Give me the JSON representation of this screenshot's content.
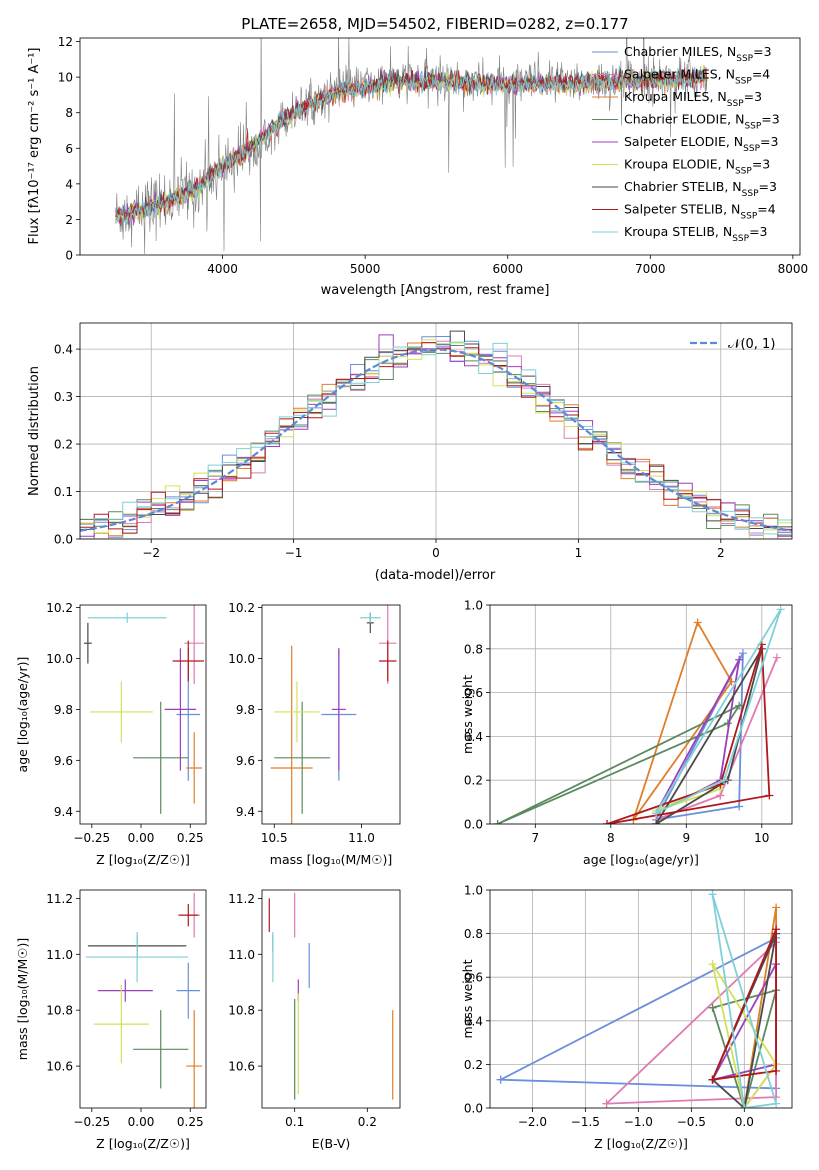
{
  "figure": {
    "title": "PLATE=2658, MJD=54502, FIBERID=0282, z=0.177"
  },
  "colors": {
    "models": [
      "#6a8fdc",
      "#e07ab2",
      "#e07e2a",
      "#5a8a5e",
      "#9b3fbf",
      "#d4e05a",
      "#4a4a4a",
      "#b0181c",
      "#7fd0d8"
    ],
    "data": "#808080",
    "normal": "#5b8ad6"
  },
  "legend_models": [
    "Chabrier MILES, N_SSP=3",
    "Salpeter MILES, N_SSP=4",
    "Kroupa MILES, N_SSP=3",
    "Chabrier ELODIE, N_SSP=3",
    "Salpeter ELODIE, N_SSP=3",
    "Kroupa ELODIE, N_SSP=3",
    "Chabrier STELIB, N_SSP=3",
    "Salpeter STELIB, N_SSP=4",
    "Kroupa STELIB, N_SSP=3"
  ],
  "chart_data": [
    {
      "id": "spectrum",
      "type": "line",
      "xlabel": "wavelength [Angstrom, rest frame]",
      "ylabel": "Flux [f_λ 10^-17 erg cm^-2 s^-1 A^-1]",
      "xlim": [
        3000,
        8050
      ],
      "ylim": [
        0,
        12.2
      ],
      "xticks": [
        4000,
        5000,
        6000,
        7000,
        8000
      ],
      "yticks": [
        0,
        2,
        4,
        6,
        8,
        10,
        12
      ],
      "grid": false,
      "legend_position": "right",
      "continuum": {
        "x": [
          3250,
          3450,
          3600,
          3800,
          4000,
          4200,
          4400,
          4600,
          4800,
          5000,
          5200,
          5400,
          5600,
          5800,
          6000,
          6200,
          6400,
          6600,
          6800,
          7000,
          7200,
          7400
        ],
        "y": [
          2.2,
          2.6,
          3.0,
          3.7,
          5.0,
          6.1,
          7.5,
          8.5,
          9.2,
          9.5,
          9.8,
          9.8,
          9.8,
          9.7,
          9.6,
          9.7,
          9.7,
          9.8,
          9.8,
          9.9,
          9.9,
          10.0
        ]
      }
    },
    {
      "id": "residuals",
      "type": "histogram",
      "xlabel": "(data-model)/error",
      "ylabel": "Normed distribution",
      "xlim": [
        -2.5,
        2.5
      ],
      "ylim": [
        0,
        0.455
      ],
      "xticks": [
        -2,
        -1,
        0,
        1,
        2
      ],
      "yticks": [
        0.0,
        0.1,
        0.2,
        0.3,
        0.4
      ],
      "bins": 50,
      "grid": true,
      "legend": "N(0,1)",
      "legend_position": "top-right"
    },
    {
      "id": "age-vs-Z",
      "type": "scatter",
      "xlabel": "Z [log10(Z/Z☉)]",
      "ylabel": "age [log10(age/yr)]",
      "xlim": [
        -0.31,
        0.33
      ],
      "ylim": [
        9.35,
        10.21
      ],
      "xticks": [
        -0.25,
        0.0,
        0.25
      ],
      "yticks": [
        9.4,
        9.6,
        9.8,
        10.0,
        10.2
      ],
      "points": [
        {
          "x": 0.24,
          "y": 9.78,
          "ex": 0.06,
          "ey": 0.26
        },
        {
          "x": 0.27,
          "y": 10.06,
          "ex": 0.05,
          "ey": 0.16
        },
        {
          "x": 0.27,
          "y": 9.57,
          "ex": 0.04,
          "ey": 0.14
        },
        {
          "x": 0.1,
          "y": 9.61,
          "ex": 0.14,
          "ey": 0.22
        },
        {
          "x": 0.2,
          "y": 9.8,
          "ex": 0.08,
          "ey": 0.24
        },
        {
          "x": -0.1,
          "y": 9.79,
          "ex": 0.16,
          "ey": 0.12
        },
        {
          "x": -0.27,
          "y": 10.06,
          "ex": 0.02,
          "ey": 0.08
        },
        {
          "x": 0.24,
          "y": 9.99,
          "ex": 0.08,
          "ey": 0.08
        },
        {
          "x": -0.07,
          "y": 10.16,
          "ex": 0.2,
          "ey": 0.02
        }
      ]
    },
    {
      "id": "age-vs-mass",
      "type": "scatter",
      "xlabel": "mass [log10(M/M☉)]",
      "ylabel": "",
      "xlim": [
        10.43,
        11.22
      ],
      "ylim": [
        9.35,
        10.21
      ],
      "xticks": [
        10.5,
        11.0
      ],
      "yticks": [
        9.4,
        9.6,
        9.8,
        10.0,
        10.2
      ],
      "points": [
        {
          "x": 10.87,
          "y": 9.78,
          "ex": 0.1,
          "ey": 0.26
        },
        {
          "x": 11.15,
          "y": 10.06,
          "ex": 0.05,
          "ey": 0.16
        },
        {
          "x": 10.6,
          "y": 9.57,
          "ex": 0.12,
          "ey": 0.48
        },
        {
          "x": 10.66,
          "y": 9.61,
          "ex": 0.16,
          "ey": 0.22
        },
        {
          "x": 10.87,
          "y": 9.8,
          "ex": 0.04,
          "ey": 0.24
        },
        {
          "x": 10.63,
          "y": 9.79,
          "ex": 0.13,
          "ey": 0.12
        },
        {
          "x": 11.05,
          "y": 10.14,
          "ex": 0.02,
          "ey": 0.04
        },
        {
          "x": 11.15,
          "y": 9.99,
          "ex": 0.05,
          "ey": 0.08
        },
        {
          "x": 11.05,
          "y": 10.16,
          "ex": 0.06,
          "ey": 0.02
        }
      ]
    },
    {
      "id": "massweight-vs-age",
      "type": "line",
      "xlabel": "age [log10(age/yr)]",
      "ylabel": "mass weight",
      "xlim": [
        6.4,
        10.4
      ],
      "ylim": [
        0.0,
        1.0
      ],
      "xticks": [
        7,
        8,
        9,
        10
      ],
      "yticks": [
        0.0,
        0.2,
        0.4,
        0.6,
        0.8,
        1.0
      ],
      "grid": true,
      "series": [
        {
          "x": [
            8.6,
            9.75,
            9.7,
            8.6
          ],
          "y": [
            0.02,
            0.78,
            0.08,
            0.02
          ]
        },
        {
          "x": [
            8.6,
            9.45,
            10.2,
            9.45,
            8.6
          ],
          "y": [
            0.02,
            0.13,
            0.76,
            0.13,
            0.02
          ]
        },
        {
          "x": [
            8.3,
            9.15,
            9.6,
            8.3
          ],
          "y": [
            0.02,
            0.92,
            0.65,
            0.02
          ]
        },
        {
          "x": [
            6.5,
            9.55,
            9.7,
            6.5
          ],
          "y": [
            0.0,
            0.46,
            0.54,
            0.0
          ]
        },
        {
          "x": [
            8.6,
            9.45,
            9.7,
            8.6
          ],
          "y": [
            0.05,
            0.2,
            0.75,
            0.05
          ]
        },
        {
          "x": [
            8.6,
            9.45,
            9.5,
            8.6
          ],
          "y": [
            0.06,
            0.16,
            0.2,
            0.06
          ]
        },
        {
          "x": [
            8.6,
            9.55,
            10.0,
            8.6
          ],
          "y": [
            0.0,
            0.2,
            0.8,
            0.0
          ]
        },
        {
          "x": [
            7.95,
            9.45,
            10.0,
            10.1,
            7.95
          ],
          "y": [
            0.0,
            0.18,
            0.82,
            0.13,
            0.0
          ]
        },
        {
          "x": [
            8.6,
            10.25,
            9.5,
            8.6
          ],
          "y": [
            0.05,
            0.98,
            0.2,
            0.05
          ]
        }
      ]
    },
    {
      "id": "mass-vs-Z",
      "type": "scatter",
      "xlabel": "Z [log10(Z/Z☉)]",
      "ylabel": "mass [log10(M/M☉)]",
      "xlim": [
        -0.31,
        0.33
      ],
      "ylim": [
        10.45,
        11.23
      ],
      "xticks": [
        -0.25,
        0.0,
        0.25
      ],
      "yticks": [
        10.6,
        10.8,
        11.0,
        11.2
      ],
      "points": [
        {
          "x": 0.24,
          "y": 10.87,
          "ex": 0.06,
          "ey": 0.1
        },
        {
          "x": 0.27,
          "y": 11.14,
          "ex": 0.03,
          "ey": 0.08
        },
        {
          "x": 0.27,
          "y": 10.6,
          "ex": 0.04,
          "ey": 0.2
        },
        {
          "x": 0.1,
          "y": 10.66,
          "ex": 0.14,
          "ey": 0.14
        },
        {
          "x": -0.08,
          "y": 10.87,
          "ex": 0.14,
          "ey": 0.04
        },
        {
          "x": -0.1,
          "y": 10.75,
          "ex": 0.14,
          "ey": 0.14
        },
        {
          "x": -0.02,
          "y": 11.03,
          "ex": 0.25,
          "ey": 0.04
        },
        {
          "x": 0.24,
          "y": 11.14,
          "ex": 0.05,
          "ey": 0.04
        },
        {
          "x": -0.02,
          "y": 10.99,
          "ex": 0.26,
          "ey": 0.09
        }
      ]
    },
    {
      "id": "mass-vs-EBV",
      "type": "scatter",
      "xlabel": "E(B-V)",
      "ylabel": "",
      "xlim": [
        0.055,
        0.245
      ],
      "ylim": [
        10.45,
        11.23
      ],
      "xticks": [
        0.1,
        0.2
      ],
      "yticks": [
        10.6,
        10.8,
        11.0,
        11.2
      ],
      "points": [
        {
          "x": 0.12,
          "y": 10.96,
          "ey": 0.08
        },
        {
          "x": 0.1,
          "y": 11.14,
          "ey": 0.08
        },
        {
          "x": 0.235,
          "y": 10.64,
          "ey": 0.16
        },
        {
          "x": 0.1,
          "y": 10.66,
          "ey": 0.18
        },
        {
          "x": 0.105,
          "y": 10.87,
          "ey": 0.04
        },
        {
          "x": 0.105,
          "y": 10.68,
          "ey": 0.18
        },
        {
          "x": 0.07,
          "y": 11.04,
          "ey": 0.03
        },
        {
          "x": 0.065,
          "y": 11.14,
          "ey": 0.06
        },
        {
          "x": 0.07,
          "y": 10.99,
          "ey": 0.09
        }
      ]
    },
    {
      "id": "massweight-vs-Z",
      "type": "line",
      "xlabel": "Z [log10(Z/Z☉)]",
      "ylabel": "mass weight",
      "xlim": [
        -2.4,
        0.45
      ],
      "ylim": [
        0.0,
        1.0
      ],
      "xticks": [
        -2.0,
        -1.5,
        -1.0,
        -0.5,
        0.0
      ],
      "yticks": [
        0.0,
        0.2,
        0.4,
        0.6,
        0.8,
        1.0
      ],
      "grid": true,
      "series": [
        {
          "x": [
            -2.3,
            0.3,
            0.3,
            -2.3
          ],
          "y": [
            0.13,
            0.78,
            0.09,
            0.13
          ]
        },
        {
          "x": [
            -1.3,
            0.3,
            0.3,
            -1.3
          ],
          "y": [
            0.02,
            0.76,
            0.05,
            0.02
          ]
        },
        {
          "x": [
            0.0,
            0.3,
            0.3,
            0.0
          ],
          "y": [
            0.0,
            0.92,
            0.2,
            0.0
          ]
        },
        {
          "x": [
            -0.3,
            0.0,
            0.3,
            -0.3
          ],
          "y": [
            0.46,
            0.0,
            0.54,
            0.46
          ]
        },
        {
          "x": [
            -0.3,
            0.3,
            0.3,
            -0.3
          ],
          "y": [
            0.13,
            0.2,
            0.66,
            0.13
          ]
        },
        {
          "x": [
            -0.3,
            0.0,
            0.3,
            -0.3
          ],
          "y": [
            0.66,
            0.0,
            0.2,
            0.66
          ]
        },
        {
          "x": [
            -0.3,
            0.0,
            0.3,
            -0.3
          ],
          "y": [
            0.13,
            0.0,
            0.8,
            0.13
          ]
        },
        {
          "x": [
            -0.3,
            0.3,
            0.3,
            -0.3
          ],
          "y": [
            0.13,
            0.82,
            0.17,
            0.13
          ]
        },
        {
          "x": [
            -0.3,
            0.0,
            0.3,
            -0.3
          ],
          "y": [
            0.98,
            0.0,
            0.02,
            0.98
          ]
        }
      ]
    }
  ]
}
